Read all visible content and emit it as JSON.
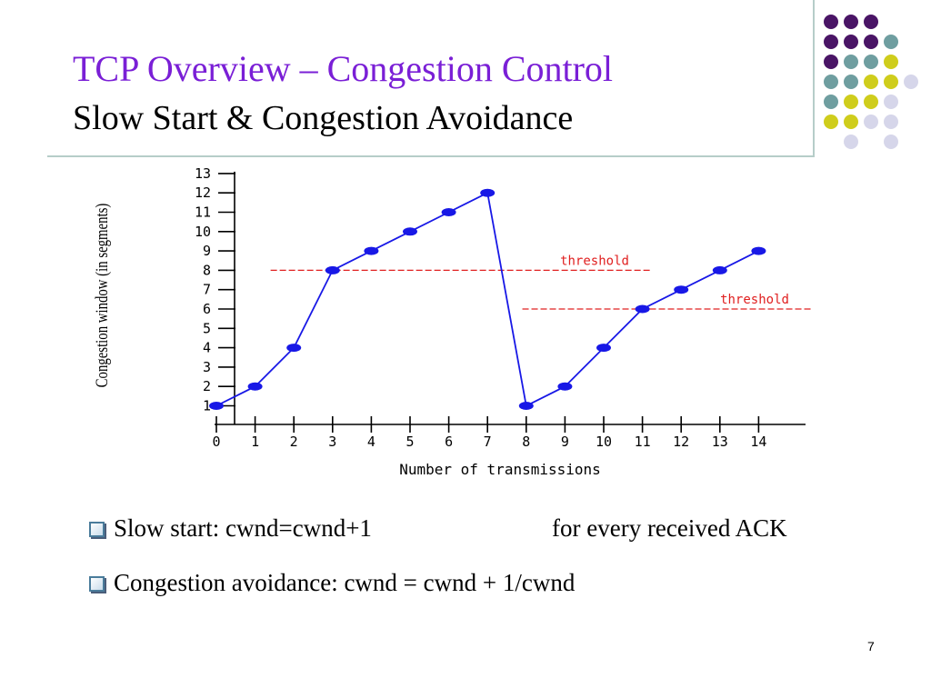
{
  "slide": {
    "title": "TCP Overview – Congestion Control",
    "subtitle": "Slow Start & Congestion Avoidance",
    "page_number": "7"
  },
  "decoration": {
    "dot_colors": [
      "#4a1566",
      "#6f9ea0",
      "#cfcd1c",
      "#d6d6ea"
    ]
  },
  "bullets": [
    {
      "text": "Slow start:  cwnd=cwnd+1",
      "extra": "for every received ACK"
    },
    {
      "text": "Congestion avoidance:  cwnd = cwnd + 1/cwnd"
    }
  ],
  "chart_data": {
    "type": "line",
    "xlabel": "Number of transmissions",
    "ylabel": "Congestion window (in segments)",
    "xlim": [
      0,
      15
    ],
    "ylim": [
      0,
      13
    ],
    "x_ticks": [
      0,
      1,
      2,
      3,
      4,
      5,
      6,
      7,
      8,
      9,
      10,
      11,
      12,
      13,
      14
    ],
    "y_ticks": [
      1,
      2,
      3,
      4,
      5,
      6,
      7,
      8,
      9,
      10,
      11,
      12,
      13
    ],
    "series": [
      {
        "x": [
          0,
          1,
          2,
          3,
          4,
          5,
          6,
          7,
          8,
          9,
          10,
          11,
          12,
          13,
          14
        ],
        "y": [
          1,
          2,
          4,
          8,
          9,
          10,
          11,
          12,
          1,
          2,
          4,
          6,
          7,
          8,
          9
        ],
        "color": "#1818e6"
      }
    ],
    "thresholds": [
      {
        "label": "threshold",
        "value": 8,
        "x_from": 1.4,
        "x_to": 11.2
      },
      {
        "label": "threshold",
        "value": 6,
        "x_from": 7.9,
        "x_to": 15.4
      }
    ],
    "threshold_color": "#e02020"
  }
}
